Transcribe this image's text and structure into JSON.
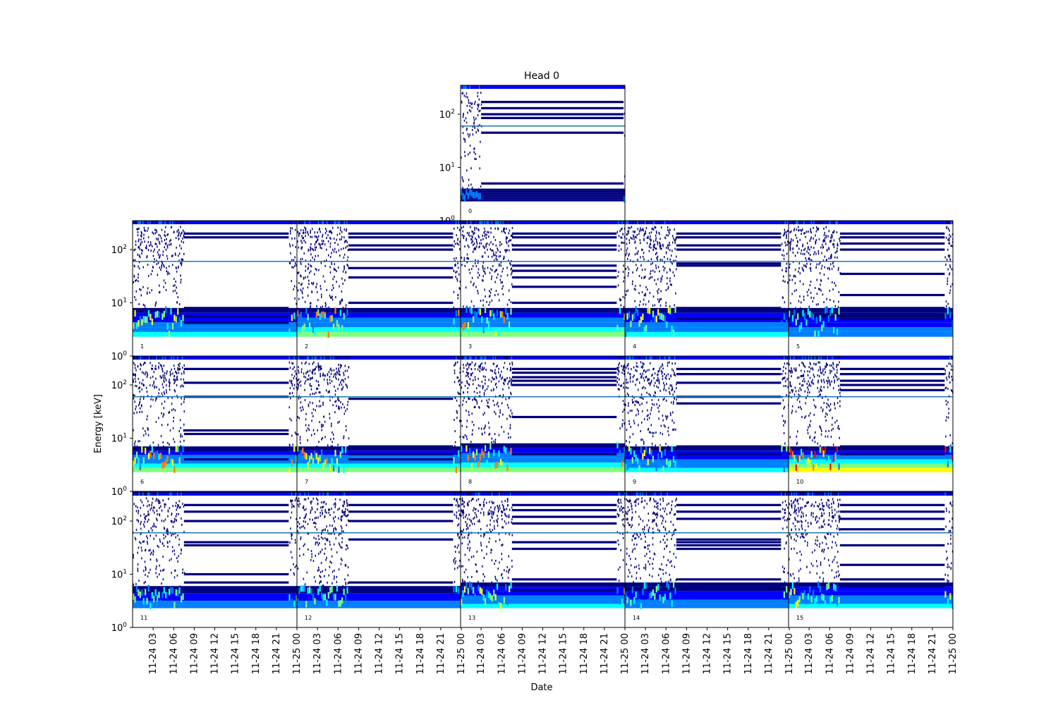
{
  "chart_data": {
    "type": "heatmap",
    "title": "Head 0",
    "xlabel": "Date",
    "ylabel": "Energy [keV]",
    "yscale": "log",
    "ylim": [
      1,
      350
    ],
    "xlim": [
      "2011-11-24 00:00",
      "2011-11-25 00:00"
    ],
    "y_ticks": [
      {
        "base": "10",
        "exp": "0",
        "value": 1
      },
      {
        "base": "10",
        "exp": "1",
        "value": 10
      },
      {
        "base": "10",
        "exp": "2",
        "value": 100
      }
    ],
    "x_ticks": [
      {
        "label": "11-24 03",
        "hour": 3
      },
      {
        "label": "11-24 06",
        "hour": 6
      },
      {
        "label": "11-24 09",
        "hour": 9
      },
      {
        "label": "11-24 12",
        "hour": 12
      },
      {
        "label": "11-24 15",
        "hour": 15
      },
      {
        "label": "11-24 18",
        "hour": 18
      },
      {
        "label": "11-24 21",
        "hour": 21
      },
      {
        "label": "11-25 00",
        "hour": 24
      }
    ],
    "reference_line_keV": 60,
    "colormap": [
      "#00007f",
      "#0000ff",
      "#007fff",
      "#00ffff",
      "#7fff7f",
      "#ffff00",
      "#ff7f00",
      "#ff0000"
    ],
    "line_color": "#1f77b4",
    "panels": [
      {
        "id": "0",
        "noisy_until_hour": 3,
        "resume_hour": 23.8,
        "low_band_top_keV": 4,
        "peak_level": 2,
        "lines_keV": [
          170,
          130,
          100,
          85,
          45,
          5
        ]
      },
      {
        "id": "1",
        "noisy_until_hour": 7.5,
        "resume_hour": 22.8,
        "low_band_top_keV": 8,
        "peak_level": 5,
        "lines_keV": [
          200,
          170,
          8,
          5.5,
          4.2
        ]
      },
      {
        "id": "2",
        "noisy_until_hour": 7.5,
        "resume_hour": 22.8,
        "low_band_top_keV": 8,
        "peak_level": 6,
        "lines_keV": [
          200,
          170,
          120,
          100,
          45,
          30,
          10
        ]
      },
      {
        "id": "3",
        "noisy_until_hour": 7.5,
        "resume_hour": 22.8,
        "low_band_top_keV": 8,
        "peak_level": 6,
        "lines_keV": [
          200,
          170,
          120,
          100,
          50,
          40,
          30,
          20,
          10
        ]
      },
      {
        "id": "4",
        "noisy_until_hour": 7.5,
        "resume_hour": 22.8,
        "low_band_top_keV": 8,
        "peak_level": 5,
        "lines_keV": [
          200,
          170,
          120,
          100,
          55,
          50,
          8,
          5
        ]
      },
      {
        "id": "5",
        "noisy_until_hour": 7.5,
        "resume_hour": 22.8,
        "low_band_top_keV": 8,
        "peak_level": 4,
        "lines_keV": [
          200,
          170,
          130,
          100,
          35,
          14,
          8,
          5
        ]
      },
      {
        "id": "6",
        "noisy_until_hour": 7.5,
        "resume_hour": 22.8,
        "low_band_top_keV": 7,
        "peak_level": 6,
        "lines_keV": [
          200,
          110,
          60,
          14,
          12,
          6,
          4
        ]
      },
      {
        "id": "7",
        "noisy_until_hour": 7.5,
        "resume_hour": 22.8,
        "low_band_top_keV": 7,
        "peak_level": 6,
        "lines_keV": [
          55,
          7,
          5,
          4
        ]
      },
      {
        "id": "8",
        "noisy_until_hour": 7.5,
        "resume_hour": 22.8,
        "low_band_top_keV": 8,
        "peak_level": 6,
        "lines_keV": [
          200,
          170,
          140,
          120,
          100,
          25,
          7,
          5
        ]
      },
      {
        "id": "9",
        "noisy_until_hour": 7.5,
        "resume_hour": 22.8,
        "low_band_top_keV": 7,
        "peak_level": 5,
        "lines_keV": [
          200,
          160,
          110,
          60,
          45,
          7,
          5
        ]
      },
      {
        "id": "10",
        "noisy_until_hour": 7.5,
        "resume_hour": 22.8,
        "low_band_top_keV": 7,
        "peak_level": 7,
        "lines_keV": [
          200,
          160,
          120,
          100,
          80,
          7,
          5
        ]
      },
      {
        "id": "11",
        "noisy_until_hour": 7.5,
        "resume_hour": 22.8,
        "low_band_top_keV": 6,
        "peak_level": 4,
        "lines_keV": [
          200,
          150,
          100,
          40,
          35,
          10,
          7,
          5
        ]
      },
      {
        "id": "12",
        "noisy_until_hour": 7.5,
        "resume_hour": 22.8,
        "low_band_top_keV": 6,
        "peak_level": 4,
        "lines_keV": [
          200,
          150,
          100,
          45,
          7,
          5
        ]
      },
      {
        "id": "13",
        "noisy_until_hour": 7.5,
        "resume_hour": 22.8,
        "low_band_top_keV": 7,
        "peak_level": 5,
        "lines_keV": [
          200,
          160,
          120,
          90,
          40,
          30,
          8,
          5
        ]
      },
      {
        "id": "14",
        "noisy_until_hour": 7.5,
        "resume_hour": 22.8,
        "low_band_top_keV": 7,
        "peak_level": 4,
        "lines_keV": [
          200,
          150,
          110,
          45,
          40,
          35,
          30,
          8,
          6
        ]
      },
      {
        "id": "15",
        "noisy_until_hour": 7.5,
        "resume_hour": 22.8,
        "low_band_top_keV": 7,
        "peak_level": 5,
        "lines_keV": [
          200,
          150,
          110,
          70,
          35,
          15,
          8,
          6
        ]
      }
    ]
  }
}
